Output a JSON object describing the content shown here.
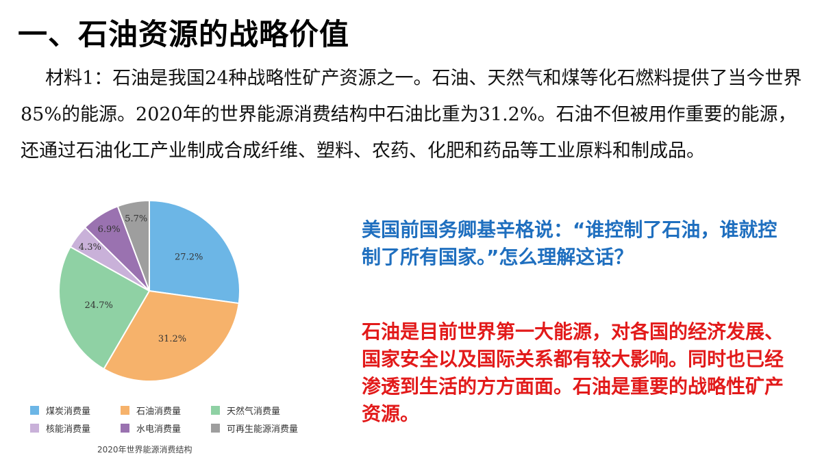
{
  "title": "一、石油资源的战略价值",
  "material_text": "材料1：石油是我国24种战略性矿产资源之一。石油、天然气和煤等化石燃料提供了当今世界85%的能源。2020年的世界能源消费结构中石油比重为31.2%。石油不但被用作重要的能源，还通过石油化工产业制成合成纤维、塑料、农药、化肥和药品等工业原料和制成品。",
  "question": "美国前国务卿基辛格说：“谁控制了石油，谁就控制了所有国家。”怎么理解这话？",
  "answer": "石油是目前世界第一大能源，对各国的经济发展、国家安全以及国际关系都有较大影响。同时也已经渗透到生活的方方面面。石油是重要的战略性矿产资源。",
  "chart_data": {
    "type": "pie",
    "caption": "2020年世界能源消费结构",
    "slices": [
      {
        "label": "煤炭消费量",
        "value": 27.2,
        "display": "27.2%",
        "color": "#6cb6e6"
      },
      {
        "label": "石油消费量",
        "value": 31.2,
        "display": "31.2%",
        "color": "#f6b26b"
      },
      {
        "label": "天然气消费量",
        "value": 24.7,
        "display": "24.7%",
        "color": "#8fd1a4"
      },
      {
        "label": "核能消费量",
        "value": 4.3,
        "display": "4.3%",
        "color": "#c9b1d9"
      },
      {
        "label": "水电消费量",
        "value": 6.9,
        "display": "6.9%",
        "color": "#9a72b0"
      },
      {
        "label": "可再生能源消费量",
        "value": 5.7,
        "display": "5.7%",
        "color": "#9e9e9e"
      }
    ],
    "slice_order_clockwise_from_top": [
      "煤炭消费量",
      "石油消费量",
      "天然气消费量",
      "核能消费量",
      "水电消费量",
      "可再生能源消费量"
    ]
  }
}
